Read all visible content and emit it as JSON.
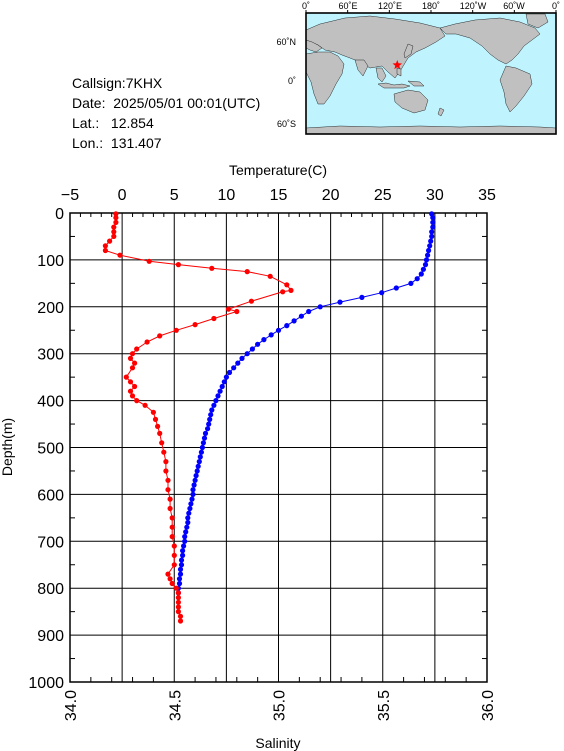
{
  "station": {
    "callsign_line": "Callsign:7KHX",
    "date_line": "Date:  2025/05/01 00:01(UTC)",
    "lat_line": "Lat.:   12.854",
    "lon_line": "Lon.:  131.407"
  },
  "map": {
    "top_labels": [
      "0˚",
      "60˚E",
      "120˚E",
      "180˚",
      "120˚W",
      "60˚W",
      "0˚"
    ],
    "side_labels": [
      "60˚N",
      "0˚",
      "60˚S"
    ],
    "marker": {
      "lon": 131.407,
      "lat": 12.854
    },
    "ocean_color": "#bff4ff",
    "land_color": "#c0c0c0",
    "marker_color": "#ff0000"
  },
  "chart_data": {
    "type": "line",
    "title": "",
    "y_axis": {
      "label": "Depth(m)",
      "lim": [
        0,
        1000
      ],
      "inverted": true,
      "ticks": [
        0,
        100,
        200,
        300,
        400,
        500,
        600,
        700,
        800,
        900,
        1000
      ]
    },
    "x_top_axis": {
      "label": "Temperature(C)",
      "lim": [
        -5,
        35
      ],
      "ticks": [
        -5,
        0,
        5,
        10,
        15,
        20,
        25,
        30,
        35
      ]
    },
    "x_bottom_axis": {
      "label": "Salinity",
      "lim": [
        34.0,
        36.0
      ],
      "ticks": [
        "34.0",
        "34.5",
        "35.0",
        "35.5",
        "36.0"
      ]
    },
    "grid": true,
    "series": [
      {
        "axis": "temperature",
        "color": "#0000ff",
        "points": [
          [
            29.7,
            2
          ],
          [
            29.8,
            10
          ],
          [
            29.8,
            20
          ],
          [
            29.8,
            30
          ],
          [
            29.7,
            40
          ],
          [
            29.7,
            50
          ],
          [
            29.6,
            60
          ],
          [
            29.5,
            70
          ],
          [
            29.4,
            80
          ],
          [
            29.3,
            90
          ],
          [
            29.2,
            100
          ],
          [
            29.1,
            110
          ],
          [
            28.9,
            120
          ],
          [
            28.7,
            130
          ],
          [
            28.3,
            140
          ],
          [
            27.7,
            150
          ],
          [
            26.3,
            160
          ],
          [
            24.9,
            170
          ],
          [
            23.0,
            180
          ],
          [
            20.9,
            190
          ],
          [
            19.0,
            200
          ],
          [
            17.9,
            210
          ],
          [
            17.2,
            220
          ],
          [
            16.5,
            230
          ],
          [
            15.8,
            240
          ],
          [
            15.0,
            250
          ],
          [
            14.3,
            260
          ],
          [
            13.6,
            270
          ],
          [
            13.0,
            280
          ],
          [
            12.5,
            290
          ],
          [
            12.0,
            300
          ],
          [
            11.5,
            310
          ],
          [
            11.1,
            320
          ],
          [
            10.7,
            330
          ],
          [
            10.3,
            340
          ],
          [
            10.0,
            350
          ],
          [
            9.8,
            360
          ],
          [
            9.6,
            370
          ],
          [
            9.4,
            380
          ],
          [
            9.2,
            390
          ],
          [
            9.0,
            400
          ],
          [
            8.8,
            410
          ],
          [
            8.6,
            420
          ],
          [
            8.5,
            430
          ],
          [
            8.4,
            440
          ],
          [
            8.3,
            450
          ],
          [
            8.2,
            460
          ],
          [
            8.0,
            470
          ],
          [
            7.9,
            480
          ],
          [
            7.8,
            490
          ],
          [
            7.7,
            500
          ],
          [
            7.6,
            510
          ],
          [
            7.5,
            520
          ],
          [
            7.4,
            530
          ],
          [
            7.3,
            540
          ],
          [
            7.2,
            550
          ],
          [
            7.1,
            560
          ],
          [
            7.0,
            570
          ],
          [
            6.9,
            580
          ],
          [
            6.8,
            590
          ],
          [
            6.8,
            600
          ],
          [
            6.7,
            610
          ],
          [
            6.6,
            620
          ],
          [
            6.5,
            630
          ],
          [
            6.4,
            640
          ],
          [
            6.3,
            650
          ],
          [
            6.3,
            660
          ],
          [
            6.2,
            670
          ],
          [
            6.1,
            680
          ],
          [
            6.0,
            690
          ],
          [
            6.0,
            700
          ],
          [
            5.9,
            710
          ],
          [
            5.8,
            720
          ],
          [
            5.8,
            730
          ],
          [
            5.7,
            740
          ],
          [
            5.7,
            750
          ],
          [
            5.6,
            760
          ],
          [
            5.6,
            770
          ],
          [
            5.5,
            780
          ],
          [
            5.5,
            790
          ],
          [
            5.4,
            800
          ],
          [
            5.4,
            810
          ]
        ]
      },
      {
        "axis": "salinity",
        "color": "#ff0000",
        "points": [
          [
            34.22,
            2
          ],
          [
            34.22,
            10
          ],
          [
            34.22,
            20
          ],
          [
            34.21,
            30
          ],
          [
            34.21,
            40
          ],
          [
            34.21,
            50
          ],
          [
            34.19,
            60
          ],
          [
            34.17,
            70
          ],
          [
            34.17,
            80
          ],
          [
            34.24,
            90
          ],
          [
            34.38,
            103
          ],
          [
            34.52,
            110
          ],
          [
            34.68,
            118
          ],
          [
            34.85,
            125
          ],
          [
            34.96,
            135
          ],
          [
            35.04,
            153
          ],
          [
            35.06,
            165
          ],
          [
            35.02,
            168
          ],
          [
            34.87,
            188
          ],
          [
            34.76,
            205
          ],
          [
            34.8,
            210
          ],
          [
            34.69,
            225
          ],
          [
            34.6,
            238
          ],
          [
            34.51,
            250
          ],
          [
            34.43,
            262
          ],
          [
            34.37,
            275
          ],
          [
            34.32,
            290
          ],
          [
            34.3,
            300
          ],
          [
            34.29,
            310
          ],
          [
            34.31,
            320
          ],
          [
            34.3,
            330
          ],
          [
            34.27,
            350
          ],
          [
            34.29,
            360
          ],
          [
            34.31,
            370
          ],
          [
            34.29,
            380
          ],
          [
            34.3,
            390
          ],
          [
            34.32,
            400
          ],
          [
            34.36,
            410
          ],
          [
            34.4,
            425
          ],
          [
            34.41,
            440
          ],
          [
            34.42,
            455
          ],
          [
            34.43,
            470
          ],
          [
            34.44,
            490
          ],
          [
            34.45,
            510
          ],
          [
            34.46,
            530
          ],
          [
            34.46,
            550
          ],
          [
            34.47,
            570
          ],
          [
            34.47,
            590
          ],
          [
            34.48,
            610
          ],
          [
            34.48,
            630
          ],
          [
            34.49,
            650
          ],
          [
            34.49,
            670
          ],
          [
            34.49,
            690
          ],
          [
            34.5,
            710
          ],
          [
            34.5,
            730
          ],
          [
            34.5,
            750
          ],
          [
            34.47,
            770
          ],
          [
            34.48,
            780
          ],
          [
            34.49,
            790
          ],
          [
            34.51,
            800
          ],
          [
            34.52,
            810
          ],
          [
            34.52,
            820
          ],
          [
            34.52,
            830
          ],
          [
            34.52,
            840
          ],
          [
            34.52,
            850
          ],
          [
            34.53,
            860
          ],
          [
            34.53,
            870
          ]
        ]
      }
    ]
  }
}
